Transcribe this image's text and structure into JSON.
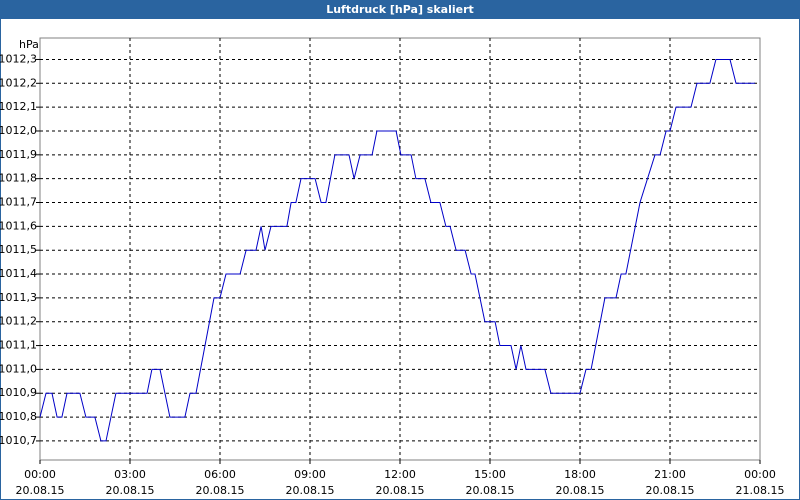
{
  "chart_data": {
    "type": "line",
    "title": "Luftdruck [hPa] skaliert",
    "y_unit": "hPa",
    "xlim": [
      0,
      24
    ],
    "xticks": [
      {
        "value": 0,
        "label": "00:00"
      },
      {
        "value": 3,
        "label": "03:00"
      },
      {
        "value": 6,
        "label": "06:00"
      },
      {
        "value": 9,
        "label": "09:00"
      },
      {
        "value": 12,
        "label": "12:00"
      },
      {
        "value": 15,
        "label": "15:00"
      },
      {
        "value": 18,
        "label": "18:00"
      },
      {
        "value": 21,
        "label": "21:00"
      },
      {
        "value": 24,
        "label": "00:00"
      }
    ],
    "xtick_dates": [
      "20.08.15",
      "20.08.15",
      "20.08.15",
      "20.08.15",
      "20.08.15",
      "20.08.15",
      "20.08.15",
      "20.08.15",
      "21.08.15"
    ],
    "ylim": [
      1010.62,
      1012.39
    ],
    "yticks": [
      {
        "value": 1010.7,
        "label": "1010,7"
      },
      {
        "value": 1010.8,
        "label": "1010,8"
      },
      {
        "value": 1010.9,
        "label": "1010,9"
      },
      {
        "value": 1011.0,
        "label": "1011,0"
      },
      {
        "value": 1011.1,
        "label": "1011,1"
      },
      {
        "value": 1011.2,
        "label": "1011,2"
      },
      {
        "value": 1011.3,
        "label": "1011,3"
      },
      {
        "value": 1011.4,
        "label": "1011,4"
      },
      {
        "value": 1011.5,
        "label": "1011,5"
      },
      {
        "value": 1011.6,
        "label": "1011,6"
      },
      {
        "value": 1011.7,
        "label": "1011,7"
      },
      {
        "value": 1011.8,
        "label": "1011,8"
      },
      {
        "value": 1011.9,
        "label": "1011,9"
      },
      {
        "value": 1012.0,
        "label": "1012,0"
      },
      {
        "value": 1012.1,
        "label": "1012,1"
      },
      {
        "value": 1012.2,
        "label": "1012,2"
      },
      {
        "value": 1012.3,
        "label": "1012,3"
      }
    ],
    "grid": true,
    "series": [
      {
        "color": "#0000c8",
        "x": [
          0,
          0.2,
          0.4,
          0.57,
          0.73,
          0.9,
          1.33,
          1.53,
          1.83,
          2.03,
          2.2,
          2.53,
          3.57,
          3.73,
          4,
          4.33,
          4.83,
          5,
          5.2,
          5.8,
          6,
          6.2,
          6.67,
          6.87,
          7.2,
          7.37,
          7.5,
          7.7,
          8.23,
          8.37,
          8.53,
          8.7,
          9.17,
          9.37,
          9.53,
          9.83,
          10.3,
          10.47,
          10.67,
          11.07,
          11.23,
          11.87,
          12.03,
          12.37,
          12.53,
          12.83,
          13.03,
          13.33,
          13.53,
          13.67,
          13.87,
          14.17,
          14.37,
          14.5,
          14.83,
          15.17,
          15.33,
          15.7,
          15.87,
          16.03,
          16.2,
          16.83,
          17.03,
          18,
          18.2,
          18.37,
          18.83,
          19.2,
          19.37,
          19.53,
          20,
          20.5,
          20.67,
          20.87,
          21,
          21.2,
          21.7,
          21.9,
          22.33,
          22.53,
          23,
          23.2,
          23.83
        ],
        "values": [
          1010.8,
          1010.9,
          1010.9,
          1010.8,
          1010.8,
          1010.9,
          1010.9,
          1010.8,
          1010.8,
          1010.7,
          1010.7,
          1010.9,
          1010.9,
          1011.0,
          1011.0,
          1010.8,
          1010.8,
          1010.9,
          1010.9,
          1011.3,
          1011.3,
          1011.4,
          1011.4,
          1011.5,
          1011.5,
          1011.6,
          1011.5,
          1011.6,
          1011.6,
          1011.7,
          1011.7,
          1011.8,
          1011.8,
          1011.7,
          1011.7,
          1011.9,
          1011.9,
          1011.8,
          1011.9,
          1011.9,
          1012.0,
          1012.0,
          1011.9,
          1011.9,
          1011.8,
          1011.8,
          1011.7,
          1011.7,
          1011.6,
          1011.6,
          1011.5,
          1011.5,
          1011.4,
          1011.4,
          1011.2,
          1011.2,
          1011.1,
          1011.1,
          1011.0,
          1011.1,
          1011.0,
          1011.0,
          1010.9,
          1010.9,
          1011.0,
          1011.0,
          1011.3,
          1011.3,
          1011.4,
          1011.4,
          1011.7,
          1011.9,
          1011.9,
          1012.0,
          1012.0,
          1012.1,
          1012.1,
          1012.2,
          1012.2,
          1012.3,
          1012.3,
          1012.2,
          1012.2
        ]
      }
    ]
  }
}
